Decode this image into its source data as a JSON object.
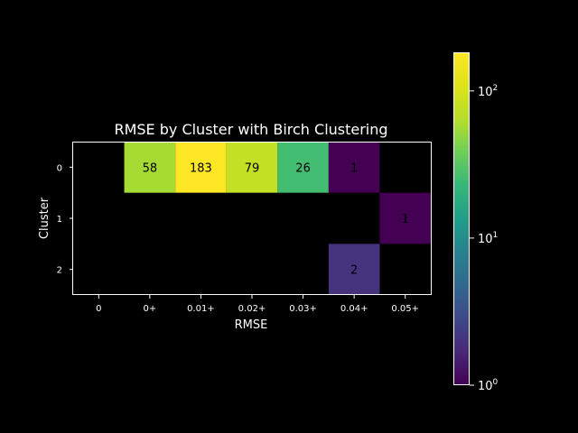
{
  "chart_data": {
    "type": "heatmap",
    "title": "RMSE by Cluster with Birch Clustering",
    "xlabel": "RMSE",
    "ylabel": "Cluster",
    "x_categories": [
      "0",
      "0+",
      "0.01+",
      "0.02+",
      "0.03+",
      "0.04+",
      "0.05+"
    ],
    "y_categories": [
      "0",
      "1",
      "2"
    ],
    "values": [
      [
        null,
        58,
        183,
        79,
        26,
        1,
        null
      ],
      [
        null,
        null,
        null,
        null,
        null,
        null,
        1
      ],
      [
        null,
        null,
        null,
        null,
        null,
        2,
        null
      ]
    ],
    "colorbar": {
      "scale": "log",
      "min": 1,
      "max": 183,
      "colormap": "viridis",
      "tick_labels": [
        {
          "value": 1,
          "base": "10",
          "exp": "0"
        },
        {
          "value": 10,
          "base": "10",
          "exp": "1"
        },
        {
          "value": 100,
          "base": "10",
          "exp": "2"
        }
      ]
    },
    "background": "#000000",
    "text_color": "#ffffff",
    "cell_label_color": "#000000"
  }
}
